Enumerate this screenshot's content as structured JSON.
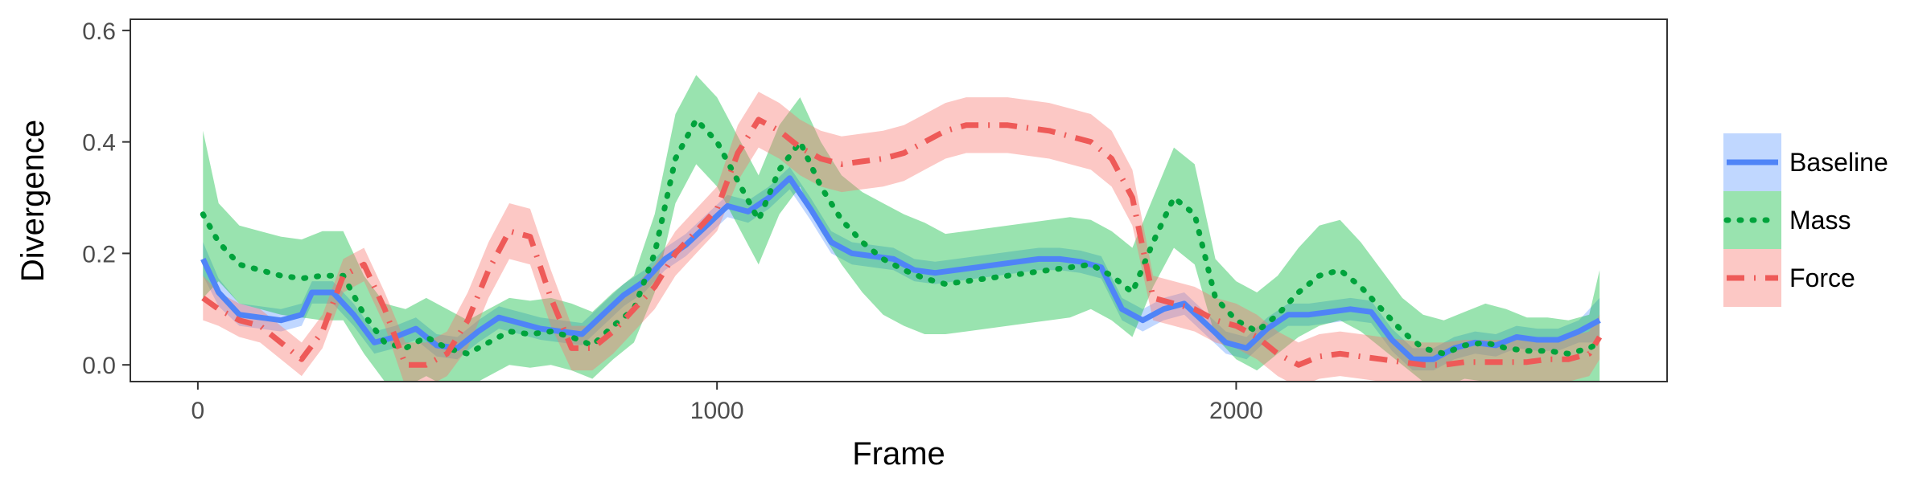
{
  "chart_data": {
    "type": "line",
    "title": "",
    "xlabel": "Frame",
    "ylabel": "Divergence",
    "xlim": [
      -130,
      2830
    ],
    "ylim": [
      -0.03,
      0.62
    ],
    "xticks": [
      0,
      1000,
      2000
    ],
    "xtick_labels": [
      "0",
      "1000",
      "2000"
    ],
    "yticks": [
      0.0,
      0.2,
      0.4,
      0.6
    ],
    "ytick_labels": [
      "0.0",
      "0.2",
      "0.4",
      "0.6"
    ],
    "grid": false,
    "legend_position": "right",
    "series": [
      {
        "name": "Baseline",
        "color": "#619CFF",
        "line_color": "#4F84F7",
        "dash": "solid",
        "x": [
          10,
          40,
          80,
          120,
          160,
          200,
          220,
          260,
          300,
          340,
          380,
          420,
          460,
          500,
          540,
          580,
          620,
          660,
          700,
          740,
          780,
          820,
          860,
          900,
          940,
          980,
          1020,
          1060,
          1100,
          1140,
          1180,
          1220,
          1260,
          1300,
          1340,
          1380,
          1420,
          1460,
          1500,
          1540,
          1580,
          1620,
          1660,
          1700,
          1740,
          1780,
          1820,
          1860,
          1900,
          1940,
          1980,
          2020,
          2060,
          2100,
          2140,
          2180,
          2220,
          2260,
          2300,
          2340,
          2380,
          2420,
          2460,
          2500,
          2540,
          2580,
          2620,
          2660,
          2700
        ],
        "y": [
          0.19,
          0.13,
          0.09,
          0.085,
          0.08,
          0.09,
          0.13,
          0.13,
          0.09,
          0.04,
          0.05,
          0.065,
          0.035,
          0.03,
          0.06,
          0.085,
          0.075,
          0.065,
          0.06,
          0.055,
          0.09,
          0.125,
          0.15,
          0.19,
          0.215,
          0.25,
          0.285,
          0.275,
          0.3,
          0.335,
          0.28,
          0.22,
          0.2,
          0.195,
          0.19,
          0.17,
          0.165,
          0.17,
          0.175,
          0.18,
          0.185,
          0.19,
          0.19,
          0.185,
          0.175,
          0.1,
          0.08,
          0.1,
          0.11,
          0.075,
          0.04,
          0.03,
          0.065,
          0.09,
          0.09,
          0.095,
          0.1,
          0.095,
          0.045,
          0.01,
          0.01,
          0.03,
          0.04,
          0.035,
          0.05,
          0.045,
          0.045,
          0.06,
          0.08
        ],
        "ci_half": [
          0.03,
          0.025,
          0.02,
          0.02,
          0.02,
          0.02,
          0.02,
          0.02,
          0.02,
          0.02,
          0.02,
          0.02,
          0.02,
          0.02,
          0.02,
          0.02,
          0.02,
          0.02,
          0.02,
          0.02,
          0.02,
          0.02,
          0.02,
          0.02,
          0.02,
          0.02,
          0.02,
          0.02,
          0.02,
          0.02,
          0.02,
          0.02,
          0.02,
          0.02,
          0.02,
          0.02,
          0.02,
          0.02,
          0.02,
          0.02,
          0.02,
          0.02,
          0.02,
          0.02,
          0.02,
          0.02,
          0.02,
          0.02,
          0.02,
          0.02,
          0.02,
          0.02,
          0.02,
          0.02,
          0.02,
          0.02,
          0.02,
          0.02,
          0.02,
          0.02,
          0.02,
          0.02,
          0.02,
          0.02,
          0.02,
          0.02,
          0.02,
          0.02,
          0.04
        ]
      },
      {
        "name": "Mass",
        "color": "#00BA38",
        "line_color": "#00A33C",
        "dash": "dotted",
        "x": [
          10,
          40,
          80,
          120,
          160,
          200,
          240,
          280,
          320,
          360,
          400,
          440,
          480,
          520,
          560,
          600,
          640,
          680,
          720,
          760,
          800,
          840,
          880,
          920,
          960,
          1000,
          1040,
          1080,
          1120,
          1160,
          1200,
          1240,
          1280,
          1320,
          1360,
          1400,
          1440,
          1480,
          1520,
          1560,
          1600,
          1640,
          1680,
          1720,
          1760,
          1800,
          1840,
          1880,
          1920,
          1960,
          2000,
          2040,
          2080,
          2120,
          2160,
          2200,
          2240,
          2280,
          2320,
          2360,
          2400,
          2440,
          2480,
          2520,
          2560,
          2600,
          2640,
          2680,
          2700
        ],
        "y": [
          0.27,
          0.22,
          0.18,
          0.17,
          0.16,
          0.155,
          0.16,
          0.16,
          0.09,
          0.04,
          0.03,
          0.05,
          0.03,
          0.02,
          0.04,
          0.06,
          0.055,
          0.06,
          0.05,
          0.035,
          0.07,
          0.1,
          0.2,
          0.37,
          0.44,
          0.4,
          0.33,
          0.26,
          0.35,
          0.4,
          0.32,
          0.26,
          0.22,
          0.19,
          0.17,
          0.155,
          0.145,
          0.15,
          0.155,
          0.16,
          0.165,
          0.17,
          0.175,
          0.18,
          0.16,
          0.13,
          0.22,
          0.3,
          0.27,
          0.12,
          0.08,
          0.06,
          0.09,
          0.13,
          0.16,
          0.17,
          0.14,
          0.1,
          0.06,
          0.03,
          0.02,
          0.035,
          0.04,
          0.03,
          0.025,
          0.025,
          0.02,
          0.03,
          0.04
        ],
        "ci_half": [
          0.15,
          0.07,
          0.07,
          0.07,
          0.07,
          0.07,
          0.08,
          0.08,
          0.07,
          0.07,
          0.07,
          0.07,
          0.07,
          0.06,
          0.06,
          0.06,
          0.06,
          0.06,
          0.06,
          0.06,
          0.06,
          0.06,
          0.07,
          0.08,
          0.08,
          0.08,
          0.08,
          0.08,
          0.08,
          0.08,
          0.08,
          0.08,
          0.09,
          0.1,
          0.1,
          0.1,
          0.09,
          0.09,
          0.09,
          0.09,
          0.09,
          0.09,
          0.09,
          0.08,
          0.08,
          0.08,
          0.08,
          0.09,
          0.09,
          0.07,
          0.07,
          0.07,
          0.07,
          0.08,
          0.09,
          0.09,
          0.08,
          0.07,
          0.06,
          0.06,
          0.06,
          0.06,
          0.07,
          0.07,
          0.06,
          0.06,
          0.06,
          0.06,
          0.13
        ]
      },
      {
        "name": "Force",
        "color": "#F8766D",
        "line_color": "#EE5A58",
        "dash": "dashdot",
        "x": [
          10,
          40,
          80,
          120,
          160,
          200,
          240,
          280,
          320,
          360,
          400,
          440,
          480,
          520,
          560,
          600,
          640,
          680,
          720,
          760,
          800,
          840,
          880,
          920,
          960,
          1000,
          1040,
          1080,
          1120,
          1160,
          1200,
          1240,
          1280,
          1320,
          1360,
          1400,
          1440,
          1480,
          1520,
          1560,
          1600,
          1640,
          1680,
          1720,
          1760,
          1800,
          1840,
          1880,
          1920,
          1960,
          2000,
          2040,
          2080,
          2120,
          2160,
          2200,
          2240,
          2280,
          2320,
          2360,
          2400,
          2440,
          2480,
          2520,
          2560,
          2600,
          2640,
          2680,
          2700
        ],
        "y": [
          0.12,
          0.1,
          0.08,
          0.07,
          0.04,
          0.01,
          0.06,
          0.16,
          0.18,
          0.1,
          0.0,
          0.0,
          0.02,
          0.08,
          0.17,
          0.24,
          0.23,
          0.12,
          0.03,
          0.03,
          0.06,
          0.1,
          0.14,
          0.2,
          0.24,
          0.28,
          0.38,
          0.44,
          0.42,
          0.39,
          0.37,
          0.36,
          0.365,
          0.37,
          0.38,
          0.4,
          0.42,
          0.43,
          0.43,
          0.43,
          0.425,
          0.42,
          0.41,
          0.4,
          0.37,
          0.3,
          0.12,
          0.11,
          0.1,
          0.08,
          0.07,
          0.05,
          0.02,
          0.0,
          0.015,
          0.02,
          0.015,
          0.01,
          0.005,
          0.0,
          0.0,
          0.005,
          0.005,
          0.005,
          0.005,
          0.01,
          0.01,
          0.02,
          0.05
        ],
        "ci_half": [
          0.04,
          0.03,
          0.03,
          0.03,
          0.03,
          0.03,
          0.03,
          0.03,
          0.03,
          0.03,
          0.04,
          0.04,
          0.04,
          0.05,
          0.05,
          0.05,
          0.05,
          0.05,
          0.04,
          0.04,
          0.04,
          0.04,
          0.04,
          0.04,
          0.04,
          0.04,
          0.05,
          0.05,
          0.05,
          0.05,
          0.05,
          0.05,
          0.05,
          0.05,
          0.05,
          0.05,
          0.05,
          0.05,
          0.05,
          0.05,
          0.05,
          0.05,
          0.05,
          0.05,
          0.05,
          0.05,
          0.04,
          0.04,
          0.04,
          0.04,
          0.04,
          0.04,
          0.04,
          0.04,
          0.04,
          0.04,
          0.04,
          0.04,
          0.04,
          0.04,
          0.04,
          0.04,
          0.04,
          0.04,
          0.04,
          0.04,
          0.04,
          0.04,
          0.04
        ]
      }
    ]
  }
}
